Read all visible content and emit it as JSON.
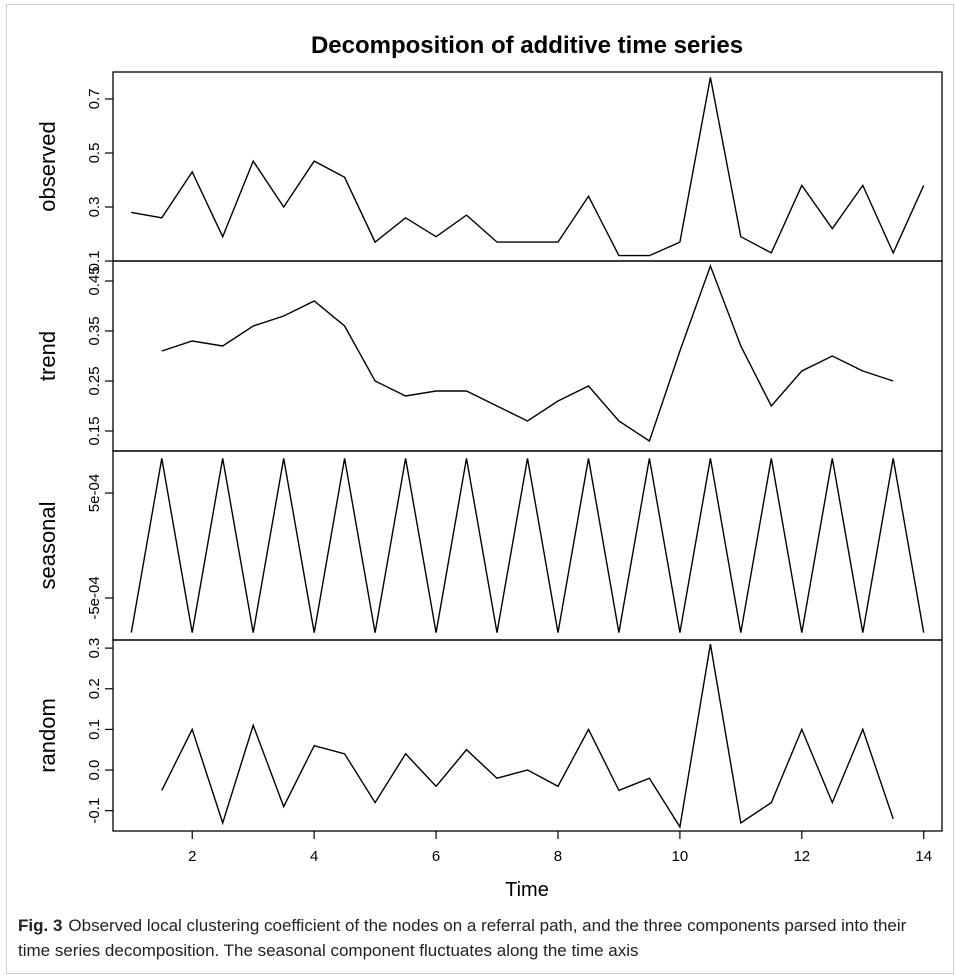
{
  "figure": {
    "caption_label": "Fig. 3",
    "caption_text": "Observed local clustering coefficient of the nodes on a referral path, and the three components parsed into their time series decomposition. The seasonal component fluctuates along the time axis"
  },
  "chart_data": {
    "type": "line",
    "title": "Decomposition of additive time series",
    "xlabel": "Time",
    "xlim": [
      0.7,
      14.3
    ],
    "x_ticks": [
      2,
      4,
      6,
      8,
      10,
      12,
      14
    ],
    "x_tick_labels": [
      "2",
      "4",
      "6",
      "8",
      "10",
      "12",
      "14"
    ],
    "grid": false,
    "panels": [
      {
        "name": "observed",
        "ylabel": "observed",
        "ylim": [
          0.1,
          0.8
        ],
        "ticks": [
          0.1,
          0.3,
          0.5,
          0.7
        ],
        "tick_labels": [
          "0.1",
          "0.3",
          "0.5",
          "0.7"
        ],
        "x": [
          1,
          1.5,
          2,
          2.5,
          3,
          3.5,
          4,
          4.5,
          5,
          5.5,
          6,
          6.5,
          7,
          7.5,
          8,
          8.5,
          9,
          9.5,
          10,
          10.5,
          11,
          11.5,
          12,
          12.5,
          13,
          13.5,
          14
        ],
        "values": [
          0.28,
          0.26,
          0.43,
          0.19,
          0.47,
          0.3,
          0.47,
          0.41,
          0.17,
          0.26,
          0.19,
          0.27,
          0.17,
          0.17,
          0.17,
          0.34,
          0.12,
          0.12,
          0.17,
          0.78,
          0.19,
          0.13,
          0.38,
          0.22,
          0.38,
          0.13,
          0.38
        ]
      },
      {
        "name": "trend",
        "ylabel": "trend",
        "ylim": [
          0.11,
          0.49
        ],
        "ticks": [
          0.15,
          0.25,
          0.35,
          0.45
        ],
        "tick_labels": [
          "0.15",
          "0.25",
          "0.35",
          "0.45"
        ],
        "x": [
          1.5,
          2,
          2.5,
          3,
          3.5,
          4,
          4.5,
          5,
          5.5,
          6,
          6.5,
          7,
          7.5,
          8,
          8.5,
          9,
          9.5,
          10,
          10.5,
          11,
          11.5,
          12,
          12.5,
          13,
          13.5
        ],
        "values": [
          0.31,
          0.33,
          0.32,
          0.36,
          0.38,
          0.41,
          0.36,
          0.25,
          0.22,
          0.23,
          0.23,
          0.2,
          0.17,
          0.21,
          0.24,
          0.17,
          0.13,
          0.31,
          0.48,
          0.32,
          0.2,
          0.27,
          0.3,
          0.27,
          0.25
        ]
      },
      {
        "name": "seasonal",
        "ylabel": "seasonal",
        "ylim": [
          -0.0009,
          0.0009
        ],
        "ticks": [
          -0.0005,
          0.0005
        ],
        "tick_labels": [
          "-5e-04",
          "5e-04"
        ],
        "x": [
          1,
          1.5,
          2,
          2.5,
          3,
          3.5,
          4,
          4.5,
          5,
          5.5,
          6,
          6.5,
          7,
          7.5,
          8,
          8.5,
          9,
          9.5,
          10,
          10.5,
          11,
          11.5,
          12,
          12.5,
          13,
          13.5,
          14
        ],
        "values": [
          -0.00083,
          0.00083,
          -0.00083,
          0.00083,
          -0.00083,
          0.00083,
          -0.00083,
          0.00083,
          -0.00083,
          0.00083,
          -0.00083,
          0.00083,
          -0.00083,
          0.00083,
          -0.00083,
          0.00083,
          -0.00083,
          0.00083,
          -0.00083,
          0.00083,
          -0.00083,
          0.00083,
          -0.00083,
          0.00083,
          -0.00083,
          0.00083,
          -0.00083
        ]
      },
      {
        "name": "random",
        "ylabel": "random",
        "ylim": [
          -0.15,
          0.32
        ],
        "ticks": [
          -0.1,
          0.0,
          0.1,
          0.2,
          0.3
        ],
        "tick_labels": [
          "-0.1",
          "0.0",
          "0.1",
          "0.2",
          "0.3"
        ],
        "x": [
          1.5,
          2,
          2.5,
          3,
          3.5,
          4,
          4.5,
          5,
          5.5,
          6,
          6.5,
          7,
          7.5,
          8,
          8.5,
          9,
          9.5,
          10,
          10.5,
          11,
          11.5,
          12,
          12.5,
          13,
          13.5
        ],
        "values": [
          -0.05,
          0.1,
          -0.13,
          0.11,
          -0.09,
          0.06,
          0.04,
          -0.08,
          0.04,
          -0.04,
          0.05,
          -0.02,
          0.0,
          -0.04,
          0.1,
          -0.05,
          -0.02,
          -0.14,
          0.31,
          -0.13,
          -0.08,
          0.1,
          -0.08,
          0.1,
          -0.12
        ]
      }
    ]
  }
}
